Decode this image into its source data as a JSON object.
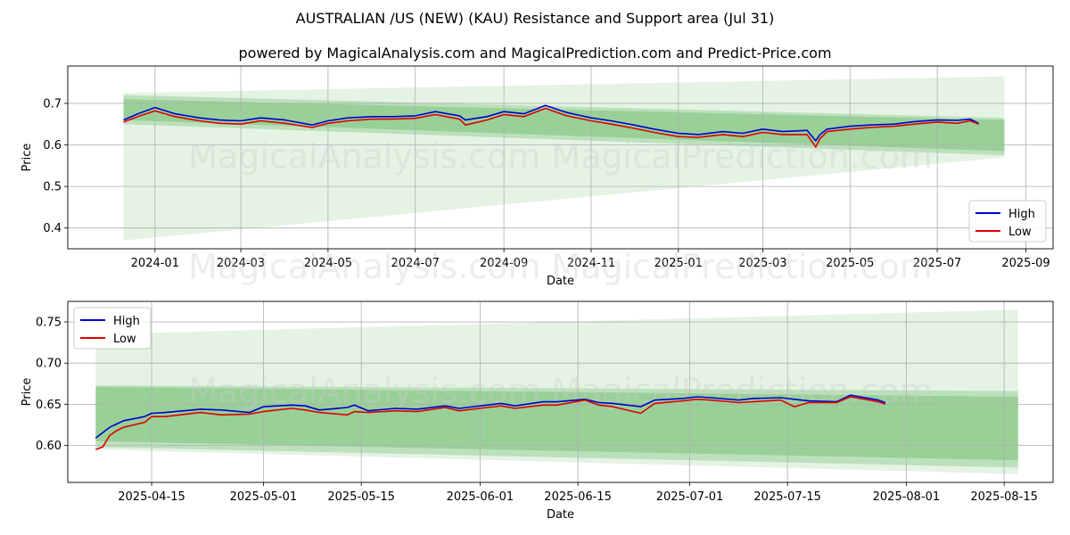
{
  "title": "AUSTRALIAN /US (NEW) (KAU) Resistance and Support area (Jul 31)",
  "subtitle": "powered by MagicalAnalysis.com and MagicalPrediction.com and Predict-Price.com",
  "watermark": "MagicalAnalysis.com    MagicalPrediction.com",
  "colors": {
    "high": "#0000cc",
    "low": "#dd0000",
    "band": "#2ca02c",
    "grid": "#b0b0b0"
  },
  "chart_data": [
    {
      "type": "line",
      "xlabel": "Date",
      "ylabel": "Price",
      "x_ticks": [
        "2024-01",
        "2024-03",
        "2024-05",
        "2024-07",
        "2024-09",
        "2024-11",
        "2025-01",
        "2025-03",
        "2025-05",
        "2025-07",
        "2025-09"
      ],
      "x_range": [
        "2023-11-01",
        "2025-09-20"
      ],
      "y_ticks": [
        0.4,
        0.5,
        0.6,
        0.7
      ],
      "ylim": [
        0.35,
        0.79
      ],
      "grid": true,
      "legend": "lower-right",
      "legend_entries": [
        "High",
        "Low"
      ],
      "bands": [
        {
          "x": [
            "2023-12-10",
            "2025-08-17"
          ],
          "upper": [
            0.725,
            0.765
          ],
          "lower": [
            0.37,
            0.57
          ],
          "opacity": 0.12
        },
        {
          "x": [
            "2023-12-10",
            "2025-08-17"
          ],
          "upper": [
            0.72,
            0.665
          ],
          "lower": [
            0.65,
            0.575
          ],
          "opacity": 0.22
        },
        {
          "x": [
            "2023-12-10",
            "2025-08-17"
          ],
          "upper": [
            0.71,
            0.66
          ],
          "lower": [
            0.66,
            0.585
          ],
          "opacity": 0.25
        }
      ],
      "series": [
        {
          "name": "High",
          "x": [
            "2023-12-10",
            "2023-12-20",
            "2024-01-01",
            "2024-01-15",
            "2024-02-01",
            "2024-02-15",
            "2024-03-01",
            "2024-03-15",
            "2024-04-01",
            "2024-04-20",
            "2024-05-01",
            "2024-05-15",
            "2024-06-01",
            "2024-06-15",
            "2024-07-01",
            "2024-07-15",
            "2024-08-01",
            "2024-08-05",
            "2024-08-20",
            "2024-09-01",
            "2024-09-15",
            "2024-09-30",
            "2024-10-15",
            "2024-11-01",
            "2024-11-15",
            "2024-12-01",
            "2024-12-15",
            "2025-01-01",
            "2025-01-15",
            "2025-02-01",
            "2025-02-15",
            "2025-03-01",
            "2025-03-15",
            "2025-04-01",
            "2025-04-07",
            "2025-04-10",
            "2025-04-15",
            "2025-05-01",
            "2025-05-15",
            "2025-06-01",
            "2025-06-15",
            "2025-07-01",
            "2025-07-15",
            "2025-07-24",
            "2025-07-30"
          ],
          "values": [
            0.66,
            0.675,
            0.69,
            0.675,
            0.665,
            0.66,
            0.658,
            0.665,
            0.66,
            0.648,
            0.658,
            0.665,
            0.668,
            0.668,
            0.67,
            0.68,
            0.67,
            0.66,
            0.668,
            0.68,
            0.675,
            0.695,
            0.678,
            0.665,
            0.658,
            0.648,
            0.638,
            0.628,
            0.625,
            0.632,
            0.628,
            0.638,
            0.632,
            0.635,
            0.61,
            0.625,
            0.638,
            0.645,
            0.648,
            0.65,
            0.656,
            0.66,
            0.659,
            0.662,
            0.652
          ]
        },
        {
          "name": "Low",
          "x": [
            "2023-12-10",
            "2023-12-20",
            "2024-01-01",
            "2024-01-15",
            "2024-02-01",
            "2024-02-15",
            "2024-03-01",
            "2024-03-15",
            "2024-04-01",
            "2024-04-20",
            "2024-05-01",
            "2024-05-15",
            "2024-06-01",
            "2024-06-15",
            "2024-07-01",
            "2024-07-15",
            "2024-08-01",
            "2024-08-05",
            "2024-08-20",
            "2024-09-01",
            "2024-09-15",
            "2024-09-30",
            "2024-10-15",
            "2024-11-01",
            "2024-11-15",
            "2024-12-01",
            "2024-12-15",
            "2025-01-01",
            "2025-01-15",
            "2025-02-01",
            "2025-02-15",
            "2025-03-01",
            "2025-03-15",
            "2025-04-01",
            "2025-04-07",
            "2025-04-10",
            "2025-04-15",
            "2025-05-01",
            "2025-05-15",
            "2025-06-01",
            "2025-06-15",
            "2025-07-01",
            "2025-07-15",
            "2025-07-24",
            "2025-07-30"
          ],
          "values": [
            0.655,
            0.668,
            0.682,
            0.668,
            0.658,
            0.652,
            0.65,
            0.658,
            0.652,
            0.642,
            0.652,
            0.658,
            0.662,
            0.662,
            0.664,
            0.673,
            0.662,
            0.648,
            0.66,
            0.673,
            0.668,
            0.688,
            0.67,
            0.658,
            0.65,
            0.64,
            0.63,
            0.62,
            0.618,
            0.625,
            0.62,
            0.63,
            0.625,
            0.625,
            0.595,
            0.615,
            0.632,
            0.638,
            0.642,
            0.645,
            0.65,
            0.655,
            0.652,
            0.658,
            0.65
          ]
        }
      ]
    },
    {
      "type": "line",
      "xlabel": "Date",
      "ylabel": "Price",
      "x_ticks": [
        "2025-04-15",
        "2025-05-01",
        "2025-05-15",
        "2025-06-01",
        "2025-06-15",
        "2025-07-01",
        "2025-07-15",
        "2025-08-01",
        "2025-08-15"
      ],
      "x_range": [
        "2025-04-03",
        "2025-08-22"
      ],
      "y_ticks": [
        0.6,
        0.65,
        0.7,
        0.75
      ],
      "ylim": [
        0.555,
        0.775
      ],
      "grid": true,
      "legend": "upper-left",
      "legend_entries": [
        "High",
        "Low"
      ],
      "bands": [
        {
          "x": [
            "2025-04-07",
            "2025-08-17"
          ],
          "upper": [
            0.735,
            0.765
          ],
          "lower": [
            0.595,
            0.565
          ],
          "opacity": 0.12
        },
        {
          "x": [
            "2025-04-07",
            "2025-08-17"
          ],
          "upper": [
            0.673,
            0.666
          ],
          "lower": [
            0.598,
            0.573
          ],
          "opacity": 0.22
        },
        {
          "x": [
            "2025-04-07",
            "2025-08-17"
          ],
          "upper": [
            0.671,
            0.659
          ],
          "lower": [
            0.605,
            0.582
          ],
          "opacity": 0.25
        }
      ],
      "series": [
        {
          "name": "High",
          "x": [
            "2025-04-07",
            "2025-04-09",
            "2025-04-11",
            "2025-04-14",
            "2025-04-15",
            "2025-04-17",
            "2025-04-22",
            "2025-04-25",
            "2025-04-29",
            "2025-05-01",
            "2025-05-05",
            "2025-05-07",
            "2025-05-09",
            "2025-05-13",
            "2025-05-14",
            "2025-05-16",
            "2025-05-20",
            "2025-05-23",
            "2025-05-27",
            "2025-05-29",
            "2025-06-02",
            "2025-06-04",
            "2025-06-06",
            "2025-06-10",
            "2025-06-12",
            "2025-06-16",
            "2025-06-18",
            "2025-06-20",
            "2025-06-24",
            "2025-06-26",
            "2025-06-30",
            "2025-07-02",
            "2025-07-04",
            "2025-07-08",
            "2025-07-10",
            "2025-07-14",
            "2025-07-16",
            "2025-07-18",
            "2025-07-22",
            "2025-07-24",
            "2025-07-28",
            "2025-07-29"
          ],
          "values": [
            0.609,
            0.622,
            0.63,
            0.635,
            0.639,
            0.64,
            0.644,
            0.643,
            0.64,
            0.647,
            0.649,
            0.648,
            0.643,
            0.646,
            0.649,
            0.642,
            0.645,
            0.644,
            0.648,
            0.645,
            0.649,
            0.651,
            0.648,
            0.653,
            0.653,
            0.656,
            0.652,
            0.651,
            0.647,
            0.655,
            0.657,
            0.659,
            0.658,
            0.655,
            0.657,
            0.658,
            0.656,
            0.654,
            0.653,
            0.661,
            0.655,
            0.652
          ]
        },
        {
          "name": "Low",
          "x": [
            "2025-04-07",
            "2025-04-08",
            "2025-04-09",
            "2025-04-10",
            "2025-04-11",
            "2025-04-14",
            "2025-04-15",
            "2025-04-17",
            "2025-04-22",
            "2025-04-25",
            "2025-04-29",
            "2025-05-01",
            "2025-05-05",
            "2025-05-07",
            "2025-05-09",
            "2025-05-13",
            "2025-05-14",
            "2025-05-16",
            "2025-05-20",
            "2025-05-23",
            "2025-05-27",
            "2025-05-29",
            "2025-06-02",
            "2025-06-04",
            "2025-06-06",
            "2025-06-10",
            "2025-06-12",
            "2025-06-16",
            "2025-06-18",
            "2025-06-20",
            "2025-06-24",
            "2025-06-26",
            "2025-06-30",
            "2025-07-02",
            "2025-07-04",
            "2025-07-08",
            "2025-07-10",
            "2025-07-14",
            "2025-07-16",
            "2025-07-18",
            "2025-07-22",
            "2025-07-24",
            "2025-07-28",
            "2025-07-29"
          ],
          "values": [
            0.595,
            0.598,
            0.612,
            0.618,
            0.622,
            0.628,
            0.635,
            0.635,
            0.64,
            0.637,
            0.638,
            0.641,
            0.645,
            0.643,
            0.64,
            0.637,
            0.641,
            0.64,
            0.642,
            0.641,
            0.646,
            0.642,
            0.646,
            0.648,
            0.645,
            0.649,
            0.649,
            0.655,
            0.649,
            0.647,
            0.639,
            0.651,
            0.654,
            0.656,
            0.655,
            0.652,
            0.653,
            0.655,
            0.647,
            0.652,
            0.652,
            0.659,
            0.653,
            0.65
          ]
        }
      ]
    }
  ]
}
